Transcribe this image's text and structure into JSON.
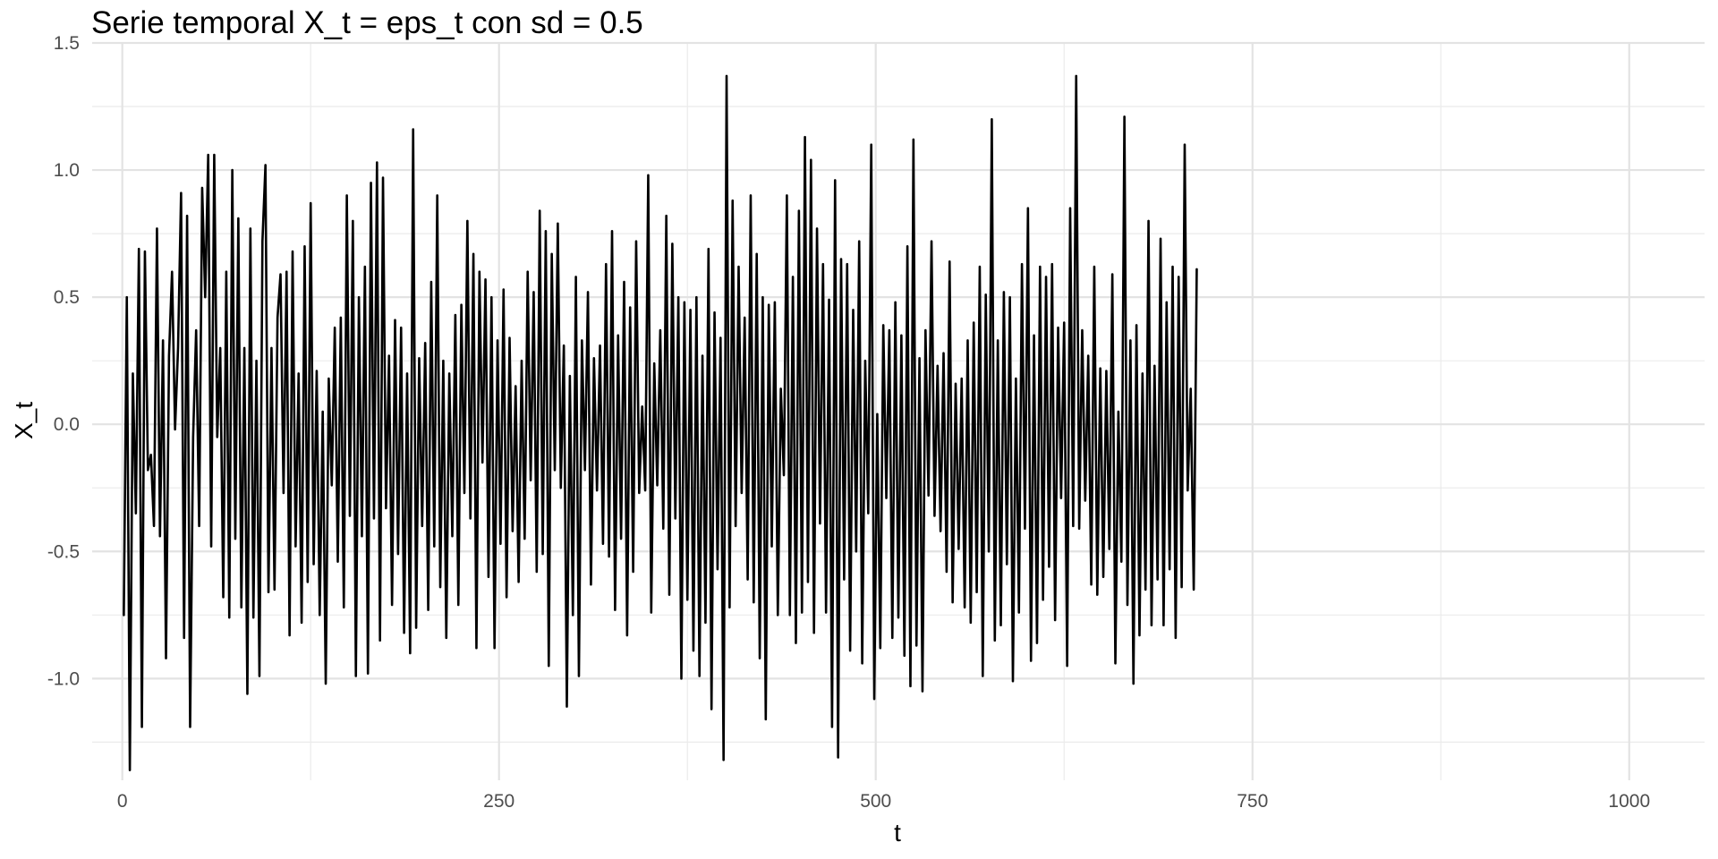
{
  "chart_data": {
    "type": "line",
    "title": "Serie temporal X_t = eps_t con sd = 0.5",
    "xlabel": "t",
    "ylabel": "X_t",
    "xlim": [
      -20,
      1050
    ],
    "ylim": [
      -1.4,
      1.5
    ],
    "x_ticks": [
      0,
      250,
      500,
      750,
      1000
    ],
    "x_tick_labels": [
      "0",
      "250",
      "500",
      "750",
      "1000"
    ],
    "y_ticks": [
      -1.0,
      -0.5,
      0.0,
      0.5,
      1.0,
      1.5
    ],
    "y_tick_labels": [
      "-1.0",
      "-0.5",
      "0.0",
      "0.5",
      "1.0",
      "1.5"
    ],
    "grid": true,
    "line_color": "#000000",
    "series": [
      {
        "x_start": 1,
        "x_step": 2,
        "values": [
          -0.75,
          0.5,
          -1.36,
          0.2,
          -0.35,
          0.69,
          -1.19,
          0.68,
          -0.18,
          -0.12,
          -0.4,
          0.77,
          -0.44,
          0.33,
          -0.92,
          0.27,
          0.6,
          -0.02,
          0.3,
          0.91,
          -0.84,
          0.82,
          -1.19,
          -0.05,
          0.37,
          -0.4,
          0.93,
          0.5,
          1.06,
          -0.48,
          1.06,
          -0.05,
          0.3,
          -0.68,
          0.6,
          -0.76,
          1.0,
          -0.45,
          0.81,
          -0.72,
          0.3,
          -1.06,
          0.77,
          -0.76,
          0.25,
          -0.99,
          0.72,
          1.02,
          -0.66,
          0.3,
          -0.65,
          0.42,
          0.59,
          -0.27,
          0.6,
          -0.83,
          0.68,
          -0.48,
          0.2,
          -0.78,
          0.7,
          -0.62,
          0.87,
          -0.55,
          0.21,
          -0.75,
          0.05,
          -1.02,
          0.18,
          -0.24,
          0.38,
          -0.54,
          0.42,
          -0.72,
          0.9,
          -0.36,
          0.8,
          -0.99,
          0.5,
          -0.44,
          0.62,
          -0.98,
          0.95,
          -0.37,
          1.03,
          -0.85,
          0.97,
          -0.33,
          0.27,
          -0.71,
          0.41,
          -0.51,
          0.38,
          -0.82,
          0.2,
          -0.9,
          1.16,
          -0.8,
          0.26,
          -0.4,
          0.32,
          -0.73,
          0.56,
          -0.48,
          0.9,
          -0.64,
          0.25,
          -0.84,
          0.2,
          -0.44,
          0.43,
          -0.71,
          0.47,
          -0.27,
          0.8,
          -0.37,
          0.67,
          -0.88,
          0.6,
          -0.15,
          0.57,
          -0.6,
          0.5,
          -0.88,
          0.33,
          -0.47,
          0.53,
          -0.68,
          0.34,
          -0.42,
          0.15,
          -0.62,
          0.25,
          -0.45,
          0.6,
          -0.22,
          0.52,
          -0.58,
          0.84,
          -0.51,
          0.76,
          -0.95,
          0.67,
          -0.18,
          0.79,
          -0.25,
          0.31,
          -1.11,
          0.19,
          -0.75,
          0.58,
          -0.99,
          0.33,
          -0.18,
          0.52,
          -0.63,
          0.26,
          -0.26,
          0.31,
          -0.47,
          0.63,
          -0.52,
          0.76,
          -0.73,
          0.35,
          -0.45,
          0.56,
          -0.83,
          0.46,
          -0.58,
          0.72,
          -0.27,
          0.07,
          -0.26,
          0.98,
          -0.74,
          0.24,
          -0.24,
          0.37,
          -0.41,
          0.82,
          -0.67,
          0.71,
          -0.37,
          0.5,
          -1.0,
          0.48,
          -0.69,
          0.45,
          -0.89,
          0.5,
          -0.99,
          0.27,
          -0.78,
          0.69,
          -1.12,
          0.44,
          -0.57,
          0.34,
          -1.32,
          1.37,
          -0.72,
          0.88,
          -0.4,
          0.62,
          -0.27,
          0.42,
          -0.61,
          0.9,
          -0.7,
          0.67,
          -0.92,
          0.5,
          -1.16,
          0.47,
          -0.48,
          0.48,
          -0.75,
          0.14,
          -0.2,
          0.9,
          -0.75,
          0.58,
          -0.86,
          0.84,
          -0.74,
          1.13,
          -0.62,
          1.04,
          -0.82,
          0.77,
          -0.39,
          0.63,
          -0.74,
          0.49,
          -1.19,
          0.96,
          -1.31,
          0.65,
          -0.61,
          0.63,
          -0.89,
          0.45,
          -0.5,
          0.72,
          -0.94,
          0.25,
          -0.35,
          1.1,
          -1.08,
          0.04,
          -0.88,
          0.39,
          -0.29,
          0.37,
          -0.84,
          0.48,
          -0.76,
          0.35,
          -0.91,
          0.7,
          -1.03,
          1.12,
          -0.87,
          0.26,
          -1.05,
          0.37,
          -0.28,
          0.72,
          -0.36,
          0.23,
          -0.42,
          0.28,
          -0.58,
          0.64,
          -0.7,
          0.16,
          -0.49,
          0.18,
          -0.72,
          0.33,
          -0.78,
          0.4,
          -0.66,
          0.62,
          -0.99,
          0.51,
          -0.5,
          1.2,
          -0.85,
          0.33,
          -0.79,
          0.52,
          -0.55,
          0.5,
          -1.01,
          0.18,
          -0.74,
          0.63,
          -0.41,
          0.85,
          -0.93,
          0.35,
          -0.86,
          0.62,
          -0.69,
          0.58,
          -0.56,
          0.63,
          -0.77,
          0.38,
          -0.29,
          0.4,
          -0.95,
          0.85,
          -0.4,
          1.37,
          -0.41,
          0.37,
          -0.3,
          0.27,
          -0.63,
          0.62,
          -0.67,
          0.22,
          -0.6,
          0.21,
          -0.49,
          0.59,
          -0.94,
          0.05,
          -0.54,
          1.21,
          -0.71,
          0.33,
          -1.02,
          0.39,
          -0.83,
          0.2,
          -0.65,
          0.8,
          -0.79,
          0.23,
          -0.61,
          0.73,
          -0.79,
          0.48,
          -0.57,
          0.62,
          -0.84,
          0.58,
          -0.64,
          1.1,
          -0.26,
          0.14,
          -0.65,
          0.61
        ]
      }
    ]
  }
}
